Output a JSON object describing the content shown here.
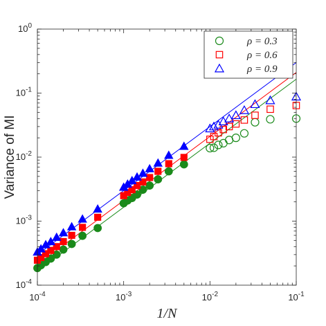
{
  "chart_data": {
    "type": "scatter",
    "xscale": "log",
    "yscale": "log",
    "xlim": [
      0.0001,
      0.1
    ],
    "ylim": [
      0.0001,
      1
    ],
    "grid": false,
    "legend_position": "top-right",
    "xlabel": "1/N",
    "ylabel": "Variance of MI",
    "xticks": [
      {
        "value": 0.0001,
        "base": "10",
        "exp": "-4"
      },
      {
        "value": 0.001,
        "base": "10",
        "exp": "-3"
      },
      {
        "value": 0.01,
        "base": "10",
        "exp": "-2"
      },
      {
        "value": 0.1,
        "base": "10",
        "exp": "-1"
      }
    ],
    "yticks": [
      {
        "value": 0.0001,
        "base": "10",
        "exp": "-4"
      },
      {
        "value": 0.001,
        "base": "10",
        "exp": "-3"
      },
      {
        "value": 0.01,
        "base": "10",
        "exp": "-2"
      },
      {
        "value": 0.1,
        "base": "10",
        "exp": "-1"
      },
      {
        "value": 1,
        "base": "10",
        "exp": "0"
      }
    ],
    "series": [
      {
        "name": "ρ = 0.3",
        "color": "#1a8a1a",
        "marker": "circle",
        "filled_points": [
          [
            0.0001,
            0.000185
          ],
          [
            0.00011,
            0.000205
          ],
          [
            0.000125,
            0.00023
          ],
          [
            0.000143,
            0.00026
          ],
          [
            0.000167,
            0.0003
          ],
          [
            0.0002,
            0.00036
          ],
          [
            0.00025,
            0.00044
          ],
          [
            0.000333,
            0.00059
          ],
          [
            0.0005,
            0.00078
          ],
          [
            0.001,
            0.0019
          ],
          [
            0.00111,
            0.0021
          ],
          [
            0.00125,
            0.0023
          ],
          [
            0.00143,
            0.0026
          ],
          [
            0.00167,
            0.0031
          ],
          [
            0.002,
            0.0036
          ],
          [
            0.0025,
            0.0045
          ],
          [
            0.00333,
            0.006
          ],
          [
            0.005,
            0.0077
          ]
        ],
        "open_points": [
          [
            0.01,
            0.0138
          ],
          [
            0.0111,
            0.014
          ],
          [
            0.0125,
            0.0155
          ],
          [
            0.0143,
            0.0165
          ],
          [
            0.0167,
            0.0185
          ],
          [
            0.02,
            0.02
          ],
          [
            0.025,
            0.0235
          ],
          [
            0.0333,
            0.035
          ],
          [
            0.05,
            0.039
          ],
          [
            0.1,
            0.04
          ]
        ],
        "fit_line": [
          [
            0.0001,
            0.000165
          ],
          [
            0.1,
            0.165
          ]
        ]
      },
      {
        "name": "ρ = 0.6",
        "color": "#ff0000",
        "marker": "square",
        "filled_points": [
          [
            0.0001,
            0.000245
          ],
          [
            0.00011,
            0.00027
          ],
          [
            0.000125,
            0.00031
          ],
          [
            0.000143,
            0.00035
          ],
          [
            0.000167,
            0.0004
          ],
          [
            0.0002,
            0.00048
          ],
          [
            0.00025,
            0.0006
          ],
          [
            0.000333,
            0.0008
          ],
          [
            0.0005,
            0.00115
          ],
          [
            0.001,
            0.0025
          ],
          [
            0.00111,
            0.0028
          ],
          [
            0.00125,
            0.0031
          ],
          [
            0.00143,
            0.0036
          ],
          [
            0.00167,
            0.0041
          ],
          [
            0.002,
            0.0048
          ],
          [
            0.0025,
            0.006
          ],
          [
            0.00333,
            0.0079
          ],
          [
            0.005,
            0.0099
          ]
        ],
        "open_points": [
          [
            0.01,
            0.019
          ],
          [
            0.0111,
            0.021
          ],
          [
            0.0125,
            0.024
          ],
          [
            0.0143,
            0.027
          ],
          [
            0.0167,
            0.03
          ],
          [
            0.02,
            0.033
          ],
          [
            0.025,
            0.038
          ],
          [
            0.0333,
            0.045
          ],
          [
            0.05,
            0.056
          ],
          [
            0.1,
            0.064
          ]
        ],
        "fit_line": [
          [
            0.0001,
            0.00021
          ],
          [
            0.1,
            0.21
          ]
        ]
      },
      {
        "name": "ρ = 0.9",
        "color": "#0000ff",
        "marker": "triangle",
        "filled_points": [
          [
            0.0001,
            0.00033
          ],
          [
            0.00011,
            0.00037
          ],
          [
            0.000125,
            0.00043
          ],
          [
            0.000143,
            0.00048
          ],
          [
            0.000167,
            0.00056
          ],
          [
            0.0002,
            0.00066
          ],
          [
            0.00025,
            0.00082
          ],
          [
            0.000333,
            0.00108
          ],
          [
            0.0005,
            0.00155
          ],
          [
            0.001,
            0.0034
          ],
          [
            0.00111,
            0.0038
          ],
          [
            0.00125,
            0.0043
          ],
          [
            0.00143,
            0.0049
          ],
          [
            0.00167,
            0.0056
          ],
          [
            0.002,
            0.0066
          ],
          [
            0.0025,
            0.0081
          ],
          [
            0.00333,
            0.0107
          ],
          [
            0.005,
            0.0148
          ]
        ],
        "open_points": [
          [
            0.01,
            0.028
          ],
          [
            0.0111,
            0.03
          ],
          [
            0.0125,
            0.032
          ],
          [
            0.0143,
            0.036
          ],
          [
            0.0167,
            0.04
          ],
          [
            0.02,
            0.045
          ],
          [
            0.025,
            0.054
          ],
          [
            0.0333,
            0.067
          ],
          [
            0.05,
            0.077
          ],
          [
            0.1,
            0.088
          ]
        ],
        "fit_line": [
          [
            0.0001,
            0.0003
          ],
          [
            0.1,
            0.3
          ]
        ]
      }
    ]
  }
}
